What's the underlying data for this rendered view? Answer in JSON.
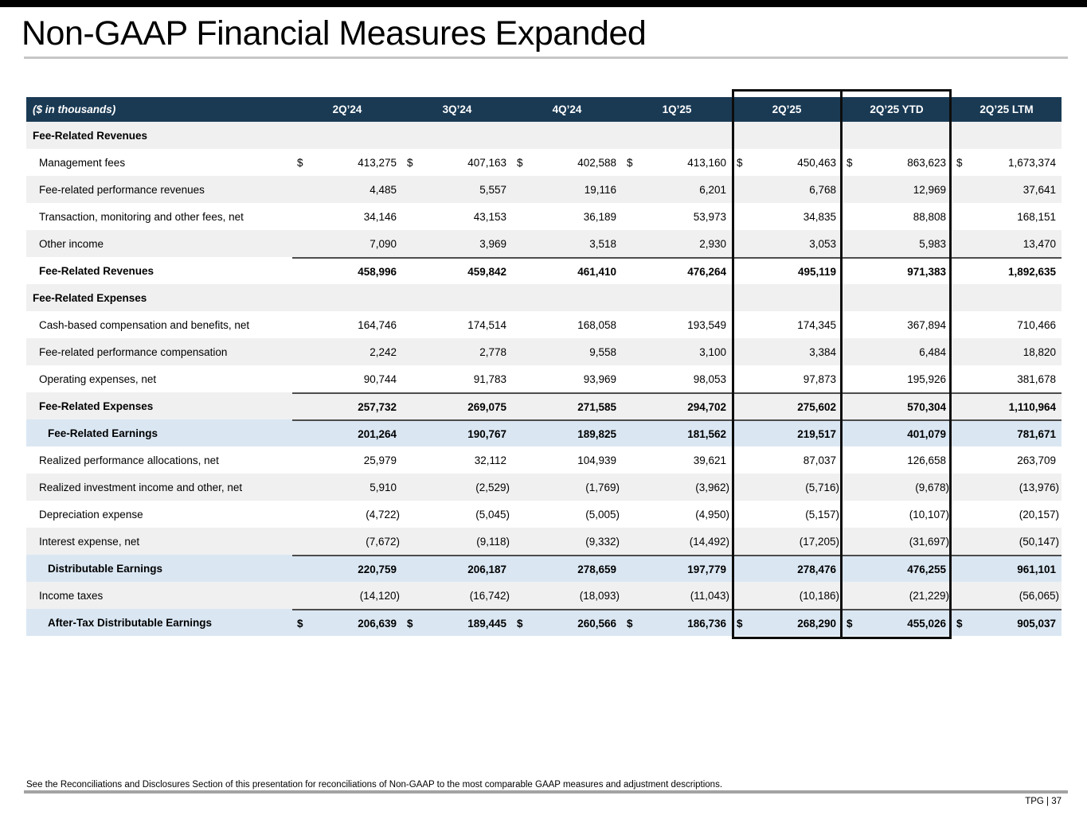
{
  "title": "Non-GAAP Financial Measures Expanded",
  "colors": {
    "header_navy": "#1a3a54",
    "stripe_gray": "#f0f0f0",
    "earnings_blue": "#dae7f3",
    "highlight_border": "#0d0d0d"
  },
  "table": {
    "unit_label": "($ in thousands)",
    "currency_symbol": "$",
    "columns": [
      "2Q’24",
      "3Q’24",
      "4Q’24",
      "1Q’25",
      "2Q’25",
      "2Q’25 YTD",
      "2Q’25 LTM"
    ],
    "highlighted_columns": [
      "2Q’25",
      "2Q’25 YTD"
    ],
    "rows": [
      {
        "label": "Fee-Related Revenues",
        "type": "section",
        "bg": "gray",
        "topline": false,
        "dollar": false,
        "values": [
          "",
          "",
          "",
          "",
          "",
          "",
          ""
        ]
      },
      {
        "label": "Management fees",
        "type": "data",
        "bg": "white",
        "topline": false,
        "dollar": true,
        "values": [
          "413,275",
          "407,163",
          "402,588",
          "413,160",
          "450,463",
          "863,623",
          "1,673,374"
        ]
      },
      {
        "label": "Fee-related performance revenues",
        "type": "data",
        "bg": "gray",
        "topline": false,
        "dollar": false,
        "values": [
          "4,485",
          "5,557",
          "19,116",
          "6,201",
          "6,768",
          "12,969",
          "37,641"
        ]
      },
      {
        "label": "Transaction, monitoring and other fees, net",
        "type": "data",
        "bg": "white",
        "topline": false,
        "dollar": false,
        "values": [
          "34,146",
          "43,153",
          "36,189",
          "53,973",
          "34,835",
          "88,808",
          "168,151"
        ]
      },
      {
        "label": "Other income",
        "type": "data",
        "bg": "gray",
        "topline": false,
        "dollar": false,
        "values": [
          "7,090",
          "3,969",
          "3,518",
          "2,930",
          "3,053",
          "5,983",
          "13,470"
        ]
      },
      {
        "label": "Fee-Related Revenues",
        "type": "total",
        "bg": "white",
        "topline": true,
        "dollar": false,
        "values": [
          "458,996",
          "459,842",
          "461,410",
          "476,264",
          "495,119",
          "971,383",
          "1,892,635"
        ]
      },
      {
        "label": "Fee-Related Expenses",
        "type": "section",
        "bg": "gray",
        "topline": false,
        "dollar": false,
        "values": [
          "",
          "",
          "",
          "",
          "",
          "",
          ""
        ]
      },
      {
        "label": "Cash-based compensation and benefits, net",
        "type": "data",
        "bg": "white",
        "topline": false,
        "dollar": false,
        "values": [
          "164,746",
          "174,514",
          "168,058",
          "193,549",
          "174,345",
          "367,894",
          "710,466"
        ]
      },
      {
        "label": "Fee-related performance compensation",
        "type": "data",
        "bg": "gray",
        "topline": false,
        "dollar": false,
        "values": [
          "2,242",
          "2,778",
          "9,558",
          "3,100",
          "3,384",
          "6,484",
          "18,820"
        ]
      },
      {
        "label": "Operating expenses, net",
        "type": "data",
        "bg": "white",
        "topline": false,
        "dollar": false,
        "values": [
          "90,744",
          "91,783",
          "93,969",
          "98,053",
          "97,873",
          "195,926",
          "381,678"
        ]
      },
      {
        "label": "Fee-Related Expenses",
        "type": "total",
        "bg": "gray",
        "topline": true,
        "dollar": false,
        "values": [
          "257,732",
          "269,075",
          "271,585",
          "294,702",
          "275,602",
          "570,304",
          "1,110,964"
        ]
      },
      {
        "label": "Fee-Related Earnings",
        "type": "earnings",
        "bg": "blue",
        "topline": true,
        "dollar": false,
        "values": [
          "201,264",
          "190,767",
          "189,825",
          "181,562",
          "219,517",
          "401,079",
          "781,671"
        ]
      },
      {
        "label": "Realized performance allocations, net",
        "type": "data",
        "bg": "white",
        "topline": false,
        "dollar": false,
        "values": [
          "25,979",
          "32,112",
          "104,939",
          "39,621",
          "87,037",
          "126,658",
          "263,709"
        ]
      },
      {
        "label": "Realized investment income and other, net",
        "type": "data",
        "bg": "gray",
        "topline": false,
        "dollar": false,
        "values": [
          "5,910",
          "(2,529)",
          "(1,769)",
          "(3,962)",
          "(5,716)",
          "(9,678)",
          "(13,976)"
        ]
      },
      {
        "label": "Depreciation expense",
        "type": "data",
        "bg": "white",
        "topline": false,
        "dollar": false,
        "values": [
          "(4,722)",
          "(5,045)",
          "(5,005)",
          "(4,950)",
          "(5,157)",
          "(10,107)",
          "(20,157)"
        ]
      },
      {
        "label": "Interest expense, net",
        "type": "data",
        "bg": "gray",
        "topline": false,
        "dollar": false,
        "values": [
          "(7,672)",
          "(9,118)",
          "(9,332)",
          "(14,492)",
          "(17,205)",
          "(31,697)",
          "(50,147)"
        ]
      },
      {
        "label": "Distributable Earnings",
        "type": "earnings",
        "bg": "blue",
        "topline": true,
        "dollar": false,
        "values": [
          "220,759",
          "206,187",
          "278,659",
          "197,779",
          "278,476",
          "476,255",
          "961,101"
        ]
      },
      {
        "label": "Income taxes",
        "type": "data",
        "bg": "gray",
        "topline": false,
        "dollar": false,
        "values": [
          "(14,120)",
          "(16,742)",
          "(18,093)",
          "(11,043)",
          "(10,186)",
          "(21,229)",
          "(56,065)"
        ]
      },
      {
        "label": "After-Tax Distributable Earnings",
        "type": "earnings",
        "bg": "blue",
        "topline": true,
        "dollar": true,
        "values": [
          "206,639",
          "189,445",
          "260,566",
          "186,736",
          "268,290",
          "455,026",
          "905,037"
        ]
      }
    ]
  },
  "footnote": "See the Reconciliations and Disclosures Section of this presentation for reconciliations of Non-GAAP to the most comparable GAAP measures and adjustment descriptions.",
  "footer": {
    "text": "TPG | 37"
  }
}
